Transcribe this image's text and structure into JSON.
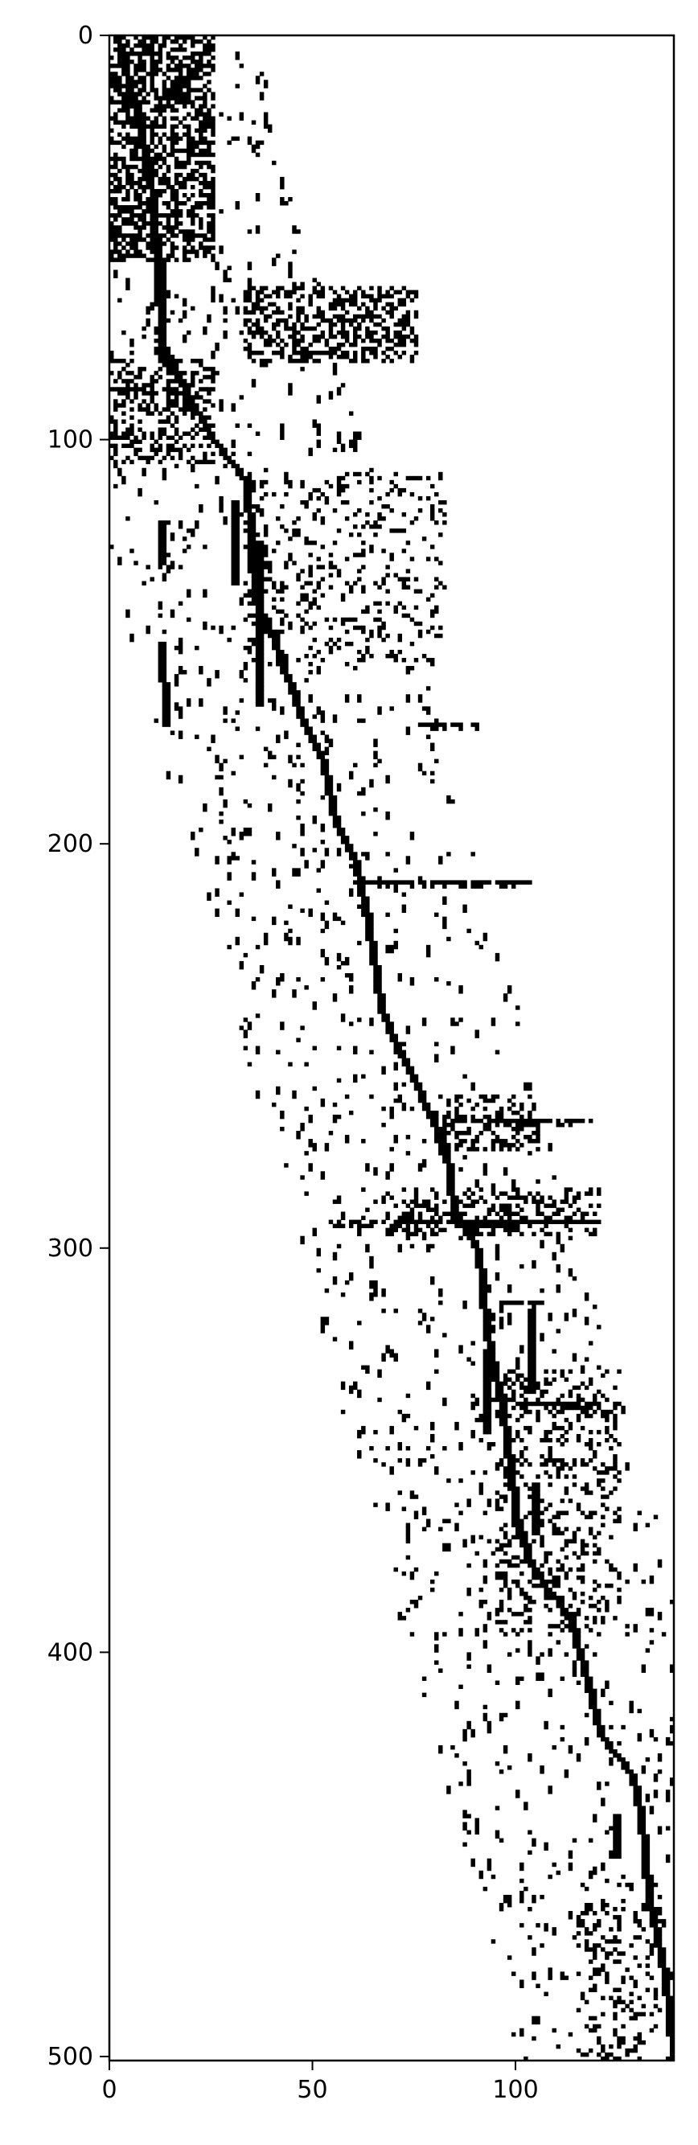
{
  "chart_data": {
    "type": "heatmap",
    "title": "",
    "xlabel": "",
    "ylabel": "",
    "colormap": "binary",
    "colors": {
      "on": "#000000",
      "off": "#ffffff",
      "axis": "#000000"
    },
    "grid": false,
    "xlim": [
      0,
      139
    ],
    "ylim": [
      501,
      0
    ],
    "x_ticks": [
      0,
      50,
      100
    ],
    "y_ticks": [
      0,
      100,
      200,
      300,
      400,
      500
    ],
    "x_tick_labels": [
      "0",
      "50",
      "100"
    ],
    "y_tick_labels": [
      "0",
      "100",
      "200",
      "300",
      "400",
      "500"
    ],
    "structure": {
      "main_trace": [
        [
          1,
          0
        ],
        [
          5,
          15
        ],
        [
          10,
          40
        ],
        [
          12,
          75
        ],
        [
          18,
          88
        ],
        [
          25,
          100
        ],
        [
          33,
          110
        ],
        [
          35,
          140
        ],
        [
          40,
          150
        ],
        [
          47,
          170
        ],
        [
          52,
          180
        ],
        [
          55,
          195
        ],
        [
          60,
          205
        ],
        [
          63,
          220
        ],
        [
          66,
          240
        ],
        [
          70,
          250
        ],
        [
          76,
          262
        ],
        [
          82,
          275
        ],
        [
          84,
          290
        ],
        [
          90,
          300
        ],
        [
          92,
          320
        ],
        [
          96,
          340
        ],
        [
          98,
          355
        ],
        [
          100,
          370
        ],
        [
          104,
          380
        ],
        [
          112,
          390
        ],
        [
          115,
          400
        ],
        [
          120,
          420
        ],
        [
          128,
          430
        ],
        [
          130,
          440
        ],
        [
          132,
          460
        ],
        [
          136,
          480
        ],
        [
          138,
          500
        ]
      ],
      "secondary_traces": [
        [
          [
            12,
            55
          ],
          [
            12,
            80
          ]
        ],
        [
          [
            12,
            120
          ],
          [
            12,
            130
          ]
        ],
        [
          [
            12,
            150
          ],
          [
            13,
            170
          ]
        ],
        [
          [
            30,
            115
          ],
          [
            30,
            135
          ]
        ],
        [
          [
            36,
            125
          ],
          [
            36,
            165
          ]
        ],
        [
          [
            103,
            315
          ],
          [
            103,
            335
          ]
        ],
        [
          [
            92,
            325
          ],
          [
            92,
            345
          ]
        ],
        [
          [
            104,
            358
          ],
          [
            104,
            370
          ]
        ],
        [
          [
            124,
            440
          ],
          [
            124,
            450
          ]
        ]
      ],
      "clusters": [
        {
          "x": [
            0,
            25
          ],
          "y": [
            0,
            55
          ],
          "density": 0.55
        },
        {
          "x": [
            33,
            75
          ],
          "y": [
            62,
            80
          ],
          "density": 0.45
        },
        {
          "x": [
            0,
            25
          ],
          "y": [
            80,
            105
          ],
          "density": 0.35
        },
        {
          "x": [
            33,
            82
          ],
          "y": [
            108,
            155
          ],
          "density": 0.14
        },
        {
          "x": [
            80,
            105
          ],
          "y": [
            262,
            275
          ],
          "density": 0.3
        },
        {
          "x": [
            68,
            120
          ],
          "y": [
            285,
            296
          ],
          "density": 0.35
        },
        {
          "x": [
            95,
            125
          ],
          "y": [
            330,
            395
          ],
          "density": 0.2
        },
        {
          "x": [
            115,
            135
          ],
          "y": [
            455,
            500
          ],
          "density": 0.15
        }
      ],
      "horizontal_streaks": [
        [
          76,
          90,
          170
        ],
        [
          60,
          105,
          209
        ],
        [
          82,
          118,
          268
        ],
        [
          55,
          120,
          293
        ],
        [
          95,
          105,
          313
        ],
        [
          100,
          120,
          338
        ],
        [
          107,
          118,
          352
        ]
      ]
    }
  }
}
